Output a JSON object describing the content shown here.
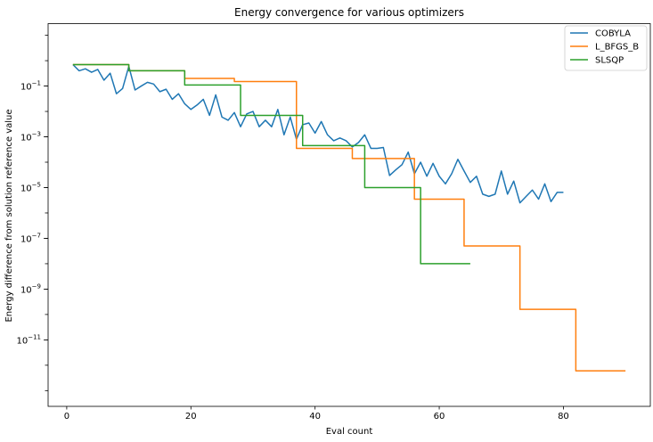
{
  "chart_data": {
    "type": "line",
    "title": "Energy convergence for various optimizers",
    "xlabel": "Eval count",
    "ylabel": "Energy difference from solution reference value",
    "yscale": "log",
    "xlim": [
      -3,
      94
    ],
    "ylim_log10": [
      -13.62,
      1.46
    ],
    "xticks": [
      0,
      20,
      40,
      60,
      80
    ],
    "yticks_exp": [
      -11,
      -9,
      -7,
      -5,
      -3,
      -1
    ],
    "y_tick_base": "10",
    "grid": false,
    "legend": "top-right",
    "series": [
      {
        "name": "COBYLA",
        "color": "#1f77b4",
        "step": false,
        "x": [
          1,
          2,
          3,
          4,
          5,
          6,
          7,
          8,
          9,
          10,
          11,
          12,
          13,
          14,
          15,
          16,
          17,
          18,
          19,
          20,
          21,
          22,
          23,
          24,
          25,
          26,
          27,
          28,
          29,
          30,
          31,
          32,
          33,
          34,
          35,
          36,
          37,
          38,
          39,
          40,
          41,
          42,
          43,
          44,
          45,
          46,
          47,
          48,
          49,
          50,
          51,
          52,
          53,
          54,
          55,
          56,
          57,
          58,
          59,
          60,
          61,
          62,
          63,
          64,
          65,
          66,
          67,
          68,
          69,
          70,
          71,
          72,
          73,
          74,
          75,
          76,
          77,
          78,
          79,
          80
        ],
        "y": [
          0.7,
          0.4,
          0.48,
          0.35,
          0.45,
          0.17,
          0.32,
          0.05,
          0.08,
          0.6,
          0.07,
          0.1,
          0.14,
          0.12,
          0.06,
          0.075,
          0.03,
          0.05,
          0.02,
          0.012,
          0.018,
          0.03,
          0.007,
          0.045,
          0.006,
          0.0045,
          0.009,
          0.0025,
          0.008,
          0.01,
          0.0025,
          0.0045,
          0.0025,
          0.012,
          0.0012,
          0.006,
          0.0008,
          0.003,
          0.0035,
          0.0014,
          0.004,
          0.0012,
          0.0007,
          0.0009,
          0.0007,
          0.0004,
          0.0006,
          0.0012,
          0.00035,
          0.00035,
          0.00038,
          3e-05,
          5e-05,
          8e-05,
          0.00025,
          3.5e-05,
          0.0001,
          2.8e-05,
          9e-05,
          2.8e-05,
          1.4e-05,
          3.5e-05,
          0.00013,
          4.5e-05,
          1.6e-05,
          2.8e-05,
          5.5e-06,
          4.5e-06,
          5.5e-06,
          4.5e-05,
          5.5e-06,
          1.8e-05,
          2.5e-06,
          4.5e-06,
          8e-06,
          3.5e-06,
          1.4e-05,
          2.8e-06,
          6.5e-06,
          6.5e-06
        ]
      },
      {
        "name": "L_BFGS_B",
        "color": "#ff7f0e",
        "step": true,
        "x": [
          1,
          10,
          19,
          27,
          37,
          46,
          56,
          64,
          73,
          82,
          90
        ],
        "y": [
          0.7,
          0.4,
          0.2,
          0.15,
          0.00035,
          0.00014,
          3.5e-06,
          5e-08,
          1.6e-10,
          6e-13,
          6e-13
        ]
      },
      {
        "name": "SLSQP",
        "color": "#2ca02c",
        "step": true,
        "x": [
          1,
          10,
          19,
          28,
          37,
          38,
          48,
          57,
          65
        ],
        "y": [
          0.7,
          0.4,
          0.11,
          0.007,
          0.007,
          0.00045,
          1e-05,
          1e-08,
          1e-08
        ]
      }
    ]
  }
}
